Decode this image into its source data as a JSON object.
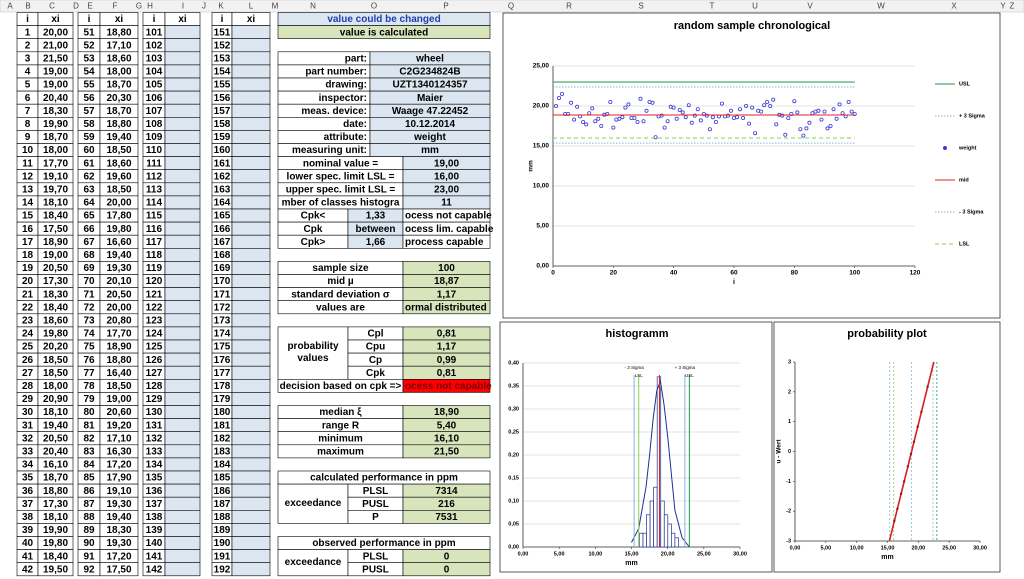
{
  "column_headers": [
    "A",
    "B",
    "C",
    "D",
    "E",
    "F",
    "G",
    "H",
    "I",
    "J",
    "K",
    "L",
    "M",
    "N",
    "O",
    "P",
    "Q",
    "R",
    "S",
    "T",
    "U",
    "V",
    "W",
    "X",
    "Y",
    "Z"
  ],
  "table": {
    "header": [
      "i",
      "xi",
      "i",
      "xi",
      "i",
      "xi",
      "i",
      "xi"
    ],
    "rows": [
      [
        1,
        "20,00",
        51,
        "18,80",
        101,
        151
      ],
      [
        2,
        "21,00",
        52,
        "17,10",
        102,
        152
      ],
      [
        3,
        "21,50",
        53,
        "18,60",
        103,
        153
      ],
      [
        4,
        "19,00",
        54,
        "18,00",
        104,
        154
      ],
      [
        5,
        "19,00",
        55,
        "18,70",
        105,
        155
      ],
      [
        6,
        "20,40",
        56,
        "20,30",
        106,
        156
      ],
      [
        7,
        "18,30",
        57,
        "18,70",
        107,
        157
      ],
      [
        8,
        "19,90",
        58,
        "18,80",
        108,
        158
      ],
      [
        9,
        "18,70",
        59,
        "19,40",
        109,
        159
      ],
      [
        10,
        "18,00",
        60,
        "18,50",
        110,
        160
      ],
      [
        11,
        "17,70",
        61,
        "18,60",
        111,
        161
      ],
      [
        12,
        "19,10",
        62,
        "19,60",
        112,
        162
      ],
      [
        13,
        "19,70",
        63,
        "18,50",
        113,
        163
      ],
      [
        14,
        "18,10",
        64,
        "20,00",
        114,
        164
      ],
      [
        15,
        "18,40",
        65,
        "17,80",
        115,
        165
      ],
      [
        16,
        "17,50",
        66,
        "19,80",
        116,
        166
      ],
      [
        17,
        "18,90",
        67,
        "16,60",
        117,
        167
      ],
      [
        18,
        "19,00",
        68,
        "19,40",
        118,
        168
      ],
      [
        19,
        "20,50",
        69,
        "19,30",
        119,
        169
      ],
      [
        20,
        "17,30",
        70,
        "20,10",
        120,
        170
      ],
      [
        21,
        "18,30",
        71,
        "20,50",
        121,
        171
      ],
      [
        22,
        "18,40",
        72,
        "20,00",
        122,
        172
      ],
      [
        23,
        "18,60",
        73,
        "20,80",
        123,
        173
      ],
      [
        24,
        "19,80",
        74,
        "17,70",
        124,
        174
      ],
      [
        25,
        "20,20",
        75,
        "18,90",
        125,
        175
      ],
      [
        26,
        "18,50",
        76,
        "18,80",
        126,
        176
      ],
      [
        27,
        "18,50",
        77,
        "16,40",
        127,
        177
      ],
      [
        28,
        "18,00",
        78,
        "18,50",
        128,
        178
      ],
      [
        29,
        "20,90",
        79,
        "19,00",
        129,
        179
      ],
      [
        30,
        "18,10",
        80,
        "20,60",
        130,
        180
      ],
      [
        31,
        "19,40",
        81,
        "19,20",
        131,
        181
      ],
      [
        32,
        "20,50",
        82,
        "17,10",
        132,
        182
      ],
      [
        33,
        "20,40",
        83,
        "16,30",
        133,
        183
      ],
      [
        34,
        "16,10",
        84,
        "17,20",
        134,
        184
      ],
      [
        35,
        "18,70",
        85,
        "17,90",
        135,
        185
      ],
      [
        36,
        "18,80",
        86,
        "19,10",
        136,
        186
      ],
      [
        37,
        "17,30",
        87,
        "19,30",
        137,
        187
      ],
      [
        38,
        "18,10",
        88,
        "19,40",
        138,
        188
      ],
      [
        39,
        "19,90",
        89,
        "18,30",
        139,
        189
      ],
      [
        40,
        "19,80",
        90,
        "19,30",
        140,
        190
      ],
      [
        41,
        "18,40",
        91,
        "17,20",
        141,
        191
      ],
      [
        42,
        "19,50",
        92,
        "17,50",
        142,
        192
      ]
    ]
  },
  "key": {
    "changed": "value could be changed",
    "calculated": "value is calculated"
  },
  "info": [
    {
      "label": "part:",
      "value": "wheel"
    },
    {
      "label": "part number:",
      "value": "C2G234824B"
    },
    {
      "label": "drawing:",
      "value": "UZT1340124357"
    },
    {
      "label": "inspector:",
      "value": "Maier"
    },
    {
      "label": "meas. device:",
      "value": "Waage 47.22452"
    },
    {
      "label": "date:",
      "value": "10.12.2014"
    },
    {
      "label": "attribute:",
      "value": "weight"
    },
    {
      "label": "measuring unit:",
      "value": "mm"
    }
  ],
  "spec": [
    {
      "label": "nominal value =",
      "value": "19,00"
    },
    {
      "label": "lower spec. limit LSL =",
      "value": "16,00"
    },
    {
      "label": "upper spec. limit LSL =",
      "value": "23,00"
    },
    {
      "label": "mber of classes histogra",
      "value": 11
    }
  ],
  "capability_rules": [
    {
      "label": "Cpk<",
      "value": "1,33",
      "result": "ocess not capable"
    },
    {
      "label": "Cpk",
      "value": "between",
      "result": "ocess lim. capable"
    },
    {
      "label": "Cpk>",
      "value": "1,66",
      "result": "process capable"
    }
  ],
  "stats": [
    {
      "label": "sample size",
      "value": 100
    },
    {
      "label": "mid µ",
      "value": "18,87"
    },
    {
      "label": "standard deviation σ",
      "value": "1,17"
    },
    {
      "label": "values are",
      "value": "ormal distributed"
    }
  ],
  "probability": {
    "label": "probability values",
    "rows": [
      {
        "label": "Cpl",
        "value": "0,81"
      },
      {
        "label": "Cpu",
        "value": "1,17"
      },
      {
        "label": "Cp",
        "value": "0,99"
      },
      {
        "label": "Cpk",
        "value": "0,81"
      }
    ]
  },
  "decision": {
    "label": "decision based on cpk =>",
    "value": "ocess not capable"
  },
  "descriptive": [
    {
      "label": "median ξ",
      "value": "18,90"
    },
    {
      "label": "range R",
      "value": "5,40"
    },
    {
      "label": "minimum",
      "value": "16,10"
    },
    {
      "label": "maximum",
      "value": "21,50"
    }
  ],
  "calculated": {
    "title": "calculated performance in ppm",
    "label": "exceedance",
    "rows": [
      {
        "label": "PLSL",
        "value": 7314
      },
      {
        "label": "PUSL",
        "value": 216
      },
      {
        "label": "P",
        "value": 7531
      }
    ]
  },
  "observed": {
    "title": "observed performance in ppm",
    "label": "exceedance",
    "rows": [
      {
        "label": "PLSL",
        "value": 0
      },
      {
        "label": "PUSL",
        "value": 0
      }
    ]
  },
  "chart_data": [
    {
      "type": "scatter",
      "title": "random sample chronological",
      "xlabel": "i",
      "ylabel": "mm",
      "legend": "right",
      "grid": true,
      "xlim": [
        0,
        120
      ],
      "xticks": [
        0,
        20,
        40,
        60,
        80,
        100,
        120
      ],
      "ylim": [
        0,
        25
      ],
      "yticks": [
        {
          "value": 0,
          "label": "0,00"
        },
        {
          "value": 5,
          "label": "5,00"
        },
        {
          "value": 10,
          "label": "10,00"
        },
        {
          "value": 15,
          "label": "15,00"
        },
        {
          "value": 20,
          "label": "20,00"
        },
        {
          "value": 25,
          "label": "25,00"
        }
      ],
      "x": [
        1,
        2,
        3,
        4,
        5,
        6,
        7,
        8,
        9,
        10,
        11,
        12,
        13,
        14,
        15,
        16,
        17,
        18,
        19,
        20,
        21,
        22,
        23,
        24,
        25,
        26,
        27,
        28,
        29,
        30,
        31,
        32,
        33,
        34,
        35,
        36,
        37,
        38,
        39,
        40,
        41,
        42,
        43,
        44,
        45,
        46,
        47,
        48,
        49,
        50,
        51,
        52,
        53,
        54,
        55,
        56,
        57,
        58,
        59,
        60,
        61,
        62,
        63,
        64,
        65,
        66,
        67,
        68,
        69,
        70,
        71,
        72,
        73,
        74,
        75,
        76,
        77,
        78,
        79,
        80,
        81,
        82,
        83,
        84,
        85,
        86,
        87,
        88,
        89,
        90,
        91,
        92,
        93,
        94,
        95,
        96,
        97,
        98,
        99,
        100
      ],
      "series": [
        {
          "name": "USL",
          "color": "#1e9a4a",
          "style": "solid",
          "value": 23
        },
        {
          "name": "+ 3 Sigma",
          "color": "#7fb8dc",
          "style": "dotted",
          "value": 22.38
        },
        {
          "name": "weight",
          "color": "#3b3bd6",
          "style": "markers",
          "values": [
            20,
            21,
            21.5,
            19,
            19,
            20.4,
            18.3,
            19.9,
            18.7,
            18,
            17.7,
            19.1,
            19.7,
            18.1,
            18.4,
            17.5,
            18.9,
            19,
            20.5,
            17.3,
            18.3,
            18.4,
            18.6,
            19.8,
            20.2,
            18.5,
            18.5,
            18,
            20.9,
            18.1,
            19.4,
            20.5,
            20.4,
            16.1,
            18.7,
            18.8,
            17.3,
            18.1,
            19.9,
            19.8,
            18.4,
            19.5,
            19.2,
            18.6,
            20.1,
            17.9,
            18.8,
            19.6,
            18.2,
            19,
            18.8,
            17.1,
            18.6,
            18,
            18.7,
            20.3,
            18.7,
            18.8,
            19.4,
            18.5,
            18.6,
            19.6,
            18.5,
            20,
            17.8,
            19.8,
            16.6,
            19.4,
            19.3,
            20.1,
            20.5,
            20,
            20.8,
            17.7,
            18.9,
            18.8,
            16.4,
            18.5,
            19,
            20.6,
            19.2,
            17.1,
            16.3,
            17.2,
            17.9,
            19.1,
            19.3,
            19.4,
            18.3,
            19.3,
            17.2,
            17.5,
            19.6,
            18.4,
            20.2,
            19.1,
            18.7,
            20.5,
            19.3,
            19
          ]
        },
        {
          "name": "mid",
          "color": "#e02020",
          "style": "solid",
          "value": 18.87
        },
        {
          "name": "- 3 Sigma",
          "color": "#7fb8dc",
          "style": "dotted",
          "value": 15.36
        },
        {
          "name": "LSL",
          "color": "#8fce4a",
          "style": "dashed",
          "value": 16
        }
      ]
    },
    {
      "type": "histogram",
      "title": "histogramm",
      "xlabel": "mm",
      "grid": true,
      "color": "#1f2f8f",
      "xlim": [
        0,
        30
      ],
      "xticks": [
        {
          "value": 0,
          "label": "0,00"
        },
        {
          "value": 5,
          "label": "5,00"
        },
        {
          "value": 10,
          "label": "10,00"
        },
        {
          "value": 15,
          "label": "15,00"
        },
        {
          "value": 20,
          "label": "20,00"
        },
        {
          "value": 25,
          "label": "25,00"
        },
        {
          "value": 30,
          "label": "30,00"
        }
      ],
      "ylim": [
        0,
        0.4
      ],
      "yticks": [
        {
          "value": 0,
          "label": "0,00"
        },
        {
          "value": 0.05,
          "label": "0,05"
        },
        {
          "value": 0.1,
          "label": "0,10"
        },
        {
          "value": 0.15,
          "label": "0,15"
        },
        {
          "value": 0.2,
          "label": "0,20"
        },
        {
          "value": 0.25,
          "label": "0,25"
        },
        {
          "value": 0.3,
          "label": "0,30"
        },
        {
          "value": 0.35,
          "label": "0,35"
        },
        {
          "value": 0.4,
          "label": "0,40"
        }
      ],
      "bins": [
        16.1,
        16.59,
        17.08,
        17.57,
        18.06,
        18.55,
        19.04,
        19.53,
        20.02,
        20.51,
        21,
        21.5
      ],
      "values": [
        0.03,
        0.03,
        0.07,
        0.1,
        0.13,
        0.37,
        0.1,
        0.07,
        0.05,
        0.03,
        0.02
      ],
      "curve": {
        "color": "#1f2f8f",
        "x": [
          15,
          16,
          17,
          17.5,
          18,
          18.5,
          19,
          19.5,
          20,
          20.5,
          21,
          22,
          23
        ],
        "y": [
          0.01,
          0.04,
          0.13,
          0.2,
          0.28,
          0.34,
          0.36,
          0.31,
          0.24,
          0.16,
          0.08,
          0.02,
          0
        ]
      },
      "mid": {
        "color": "#e02020",
        "value": 18.87
      },
      "vlines": [
        {
          "label": "- 3 Sigma",
          "value": 15.36,
          "color": "#7fb8dc"
        },
        {
          "label": "LSL",
          "value": 16,
          "color": "#8fce4a"
        },
        {
          "label": "+ 3 Sigma",
          "value": 22.38,
          "color": "#7fb8dc"
        },
        {
          "label": "USL",
          "value": 23,
          "color": "#1e9a4a"
        }
      ]
    },
    {
      "type": "line",
      "title": "probability plot",
      "xlabel": "mm",
      "ylabel": "u - Wert",
      "grid": true,
      "xlim": [
        0,
        30
      ],
      "xticks": [
        {
          "value": 0,
          "label": "0,00"
        },
        {
          "value": 5,
          "label": "5,00"
        },
        {
          "value": 10,
          "label": "10,00"
        },
        {
          "value": 15,
          "label": "15,00"
        },
        {
          "value": 20,
          "label": "20,00"
        },
        {
          "value": 25,
          "label": "25,00"
        },
        {
          "value": 30,
          "label": "30,00"
        }
      ],
      "ylim": [
        -3,
        3
      ],
      "yticks": [
        -3,
        -2,
        -1,
        0,
        1,
        2,
        3
      ],
      "vlines": [
        {
          "value": 15.36,
          "color": "#7fb8dc"
        },
        {
          "value": 16,
          "color": "#8fce4a"
        },
        {
          "value": 18.87,
          "color": "#7fb8dc"
        },
        {
          "value": 22.38,
          "color": "#7fb8dc"
        },
        {
          "value": 23,
          "color": "#1e9a4a"
        }
      ],
      "fit": {
        "color": "#d42020",
        "x": [
          15.3,
          22.5
        ],
        "y": [
          -3,
          3
        ]
      },
      "points": {
        "color": "#8b1a1a",
        "x": [
          16.1,
          16.6,
          17.2,
          17.7,
          18.3,
          18.8,
          19.3,
          19.9,
          20.5,
          21.5
        ],
        "y": [
          -2.33,
          -1.92,
          -1.42,
          -1,
          -0.5,
          -0.08,
          0.33,
          0.83,
          1.33,
          2.17
        ]
      }
    }
  ]
}
